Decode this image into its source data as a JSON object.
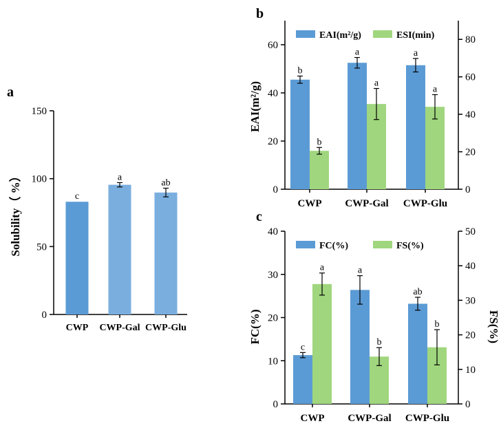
{
  "colors": {
    "blue": "#5b9bd5",
    "blue_light": "#7aaedf",
    "green": "#a0d67e",
    "axis": "#000000"
  },
  "chart_data": [
    {
      "panel": "a",
      "type": "bar",
      "panel_label": "a",
      "categories": [
        "CWP",
        "CWP-Gal",
        "CWP-Glu"
      ],
      "values": [
        83,
        95.5,
        89.8
      ],
      "errors": [
        0,
        1.6,
        3.2
      ],
      "letters": [
        "c",
        "a",
        "ab"
      ],
      "ylabel": "Solubility（ %）",
      "ylim": [
        0,
        150
      ],
      "yticks": [
        0,
        50,
        100,
        150
      ]
    },
    {
      "panel": "b",
      "type": "bar",
      "panel_label": "b",
      "categories": [
        "CWP",
        "CWP-Gal",
        "CWP-Glu"
      ],
      "series": [
        {
          "name": "EAI(m²/g)",
          "legend": "EAI(m²/g)",
          "axis": "left",
          "values": [
            45.5,
            52.5,
            51.5
          ],
          "errors": [
            1.5,
            2.2,
            2.8
          ],
          "letters": [
            "b",
            "a",
            "a"
          ]
        },
        {
          "name": "ESI(min)",
          "legend": "ESI(min)",
          "axis": "right",
          "values": [
            20.5,
            45.5,
            44
          ],
          "errors": [
            1.8,
            8.3,
            6.5
          ],
          "letters": [
            "b",
            "a",
            "a"
          ]
        }
      ],
      "ylabel_left": "EAI(m²/g)",
      "ylim_left": [
        0,
        70
      ],
      "yticks_left": [
        0,
        20,
        40,
        60
      ],
      "ylim_right": [
        0,
        90
      ],
      "yticks_right": [
        0,
        20,
        40,
        60,
        80
      ],
      "legend_position": "top"
    },
    {
      "panel": "c",
      "type": "bar",
      "panel_label": "c",
      "categories": [
        "CWP",
        "CWP-Gal",
        "CWP-Glu"
      ],
      "series": [
        {
          "name": "FC(%)",
          "legend": "FC(%)",
          "axis": "left",
          "values": [
            11.3,
            26.4,
            23.2
          ],
          "errors": [
            0.6,
            3.3,
            1.5
          ],
          "letters": [
            "c",
            "a",
            "ab"
          ]
        },
        {
          "name": "FS(%)",
          "legend": "FS(%)",
          "axis": "right",
          "values": [
            34.7,
            13.7,
            16.4
          ],
          "errors": [
            3.2,
            2.6,
            5.1
          ],
          "letters": [
            "a",
            "b",
            "b"
          ]
        }
      ],
      "ylabel_left": "FC(%)",
      "ylabel_right": "FS(%)",
      "ylim_left": [
        0,
        40
      ],
      "yticks_left": [
        0,
        10,
        20,
        30,
        40
      ],
      "ylim_right": [
        0,
        50
      ],
      "yticks_right": [
        0,
        10,
        20,
        30,
        40,
        50
      ],
      "legend_position": "top"
    }
  ]
}
